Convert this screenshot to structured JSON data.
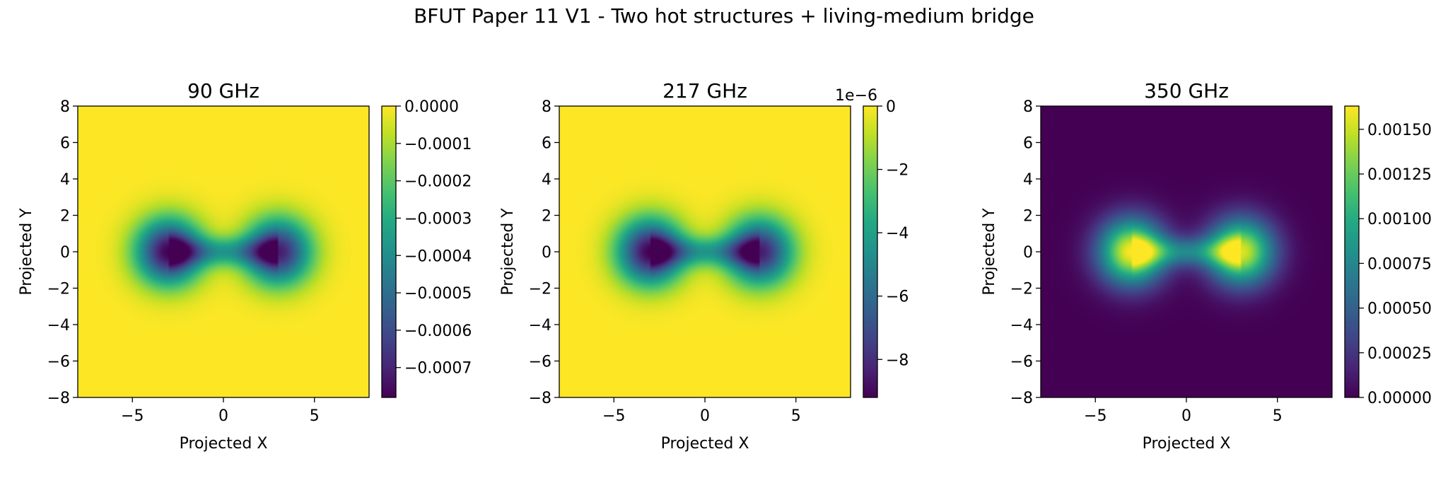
{
  "figure": {
    "suptitle": "BFUT Paper 11 V1 - Two hot structures + living-medium bridge"
  },
  "chart_data": [
    {
      "type": "heatmap",
      "title": "90 GHz",
      "xlabel": "Projected X",
      "ylabel": "Projected Y",
      "xlim": [
        -8,
        8
      ],
      "ylim": [
        -8,
        8
      ],
      "x_ticks": [
        "−5",
        "0",
        "5"
      ],
      "x_tick_values": [
        -5,
        0,
        5
      ],
      "y_ticks": [
        "−8",
        "−6",
        "−4",
        "−2",
        "0",
        "2",
        "4",
        "6",
        "8"
      ],
      "y_tick_values": [
        -8,
        -6,
        -4,
        -2,
        0,
        2,
        4,
        6,
        8
      ],
      "colormap": "viridis",
      "color_range": [
        -0.00078,
        0.0
      ],
      "colorbar_ticks": [
        "0.0000",
        "−0.0001",
        "−0.0002",
        "−0.0003",
        "−0.0004",
        "−0.0005",
        "−0.0006",
        "−0.0007"
      ],
      "colorbar_tick_values": [
        0.0,
        -0.0001,
        -0.0002,
        -0.0003,
        -0.0004,
        -0.0005,
        -0.0006,
        -0.0007
      ],
      "colorbar_offset": "",
      "structures": [
        {
          "x": -3,
          "y": 0,
          "peak": -0.00078
        },
        {
          "x": 3,
          "y": 0,
          "peak": -0.00072
        }
      ],
      "bridge_level": -0.0003
    },
    {
      "type": "heatmap",
      "title": "217 GHz",
      "xlabel": "Projected X",
      "ylabel": "Projected Y",
      "xlim": [
        -8,
        8
      ],
      "ylim": [
        -8,
        8
      ],
      "x_ticks": [
        "−5",
        "0",
        "5"
      ],
      "x_tick_values": [
        -5,
        0,
        5
      ],
      "y_ticks": [
        "−8",
        "−6",
        "−4",
        "−2",
        "0",
        "2",
        "4",
        "6",
        "8"
      ],
      "y_tick_values": [
        -8,
        -6,
        -4,
        -2,
        0,
        2,
        4,
        6,
        8
      ],
      "colormap": "viridis",
      "color_range": [
        -9.2,
        0.0
      ],
      "colorbar_ticks": [
        "0",
        "−2",
        "−4",
        "−6",
        "−8"
      ],
      "colorbar_tick_values": [
        0,
        -2,
        -4,
        -6,
        -8
      ],
      "colorbar_offset": "1e−6",
      "structures": [
        {
          "x": -3,
          "y": 0,
          "peak": -9.2
        },
        {
          "x": 3,
          "y": 0,
          "peak": -8.5
        }
      ],
      "bridge_level": -3.5
    },
    {
      "type": "heatmap",
      "title": "350 GHz",
      "xlabel": "Projected X",
      "ylabel": "Projected Y",
      "xlim": [
        -8,
        8
      ],
      "ylim": [
        -8,
        8
      ],
      "x_ticks": [
        "−5",
        "0",
        "5"
      ],
      "x_tick_values": [
        -5,
        0,
        5
      ],
      "y_ticks": [
        "−8",
        "−6",
        "−4",
        "−2",
        "0",
        "2",
        "4",
        "6",
        "8"
      ],
      "y_tick_values": [
        -8,
        -6,
        -4,
        -2,
        0,
        2,
        4,
        6,
        8
      ],
      "colormap": "viridis",
      "color_range": [
        0.0,
        0.00163
      ],
      "colorbar_ticks": [
        "0.00000",
        "0.00025",
        "0.00050",
        "0.00075",
        "0.00100",
        "0.00125",
        "0.00150"
      ],
      "colorbar_tick_values": [
        0.0,
        0.00025,
        0.0005,
        0.00075,
        0.001,
        0.00125,
        0.0015
      ],
      "colorbar_offset": "",
      "structures": [
        {
          "x": -3,
          "y": 0,
          "peak": 0.00163
        },
        {
          "x": 3,
          "y": 0,
          "peak": 0.00155
        }
      ],
      "bridge_level": 0.0006
    }
  ]
}
